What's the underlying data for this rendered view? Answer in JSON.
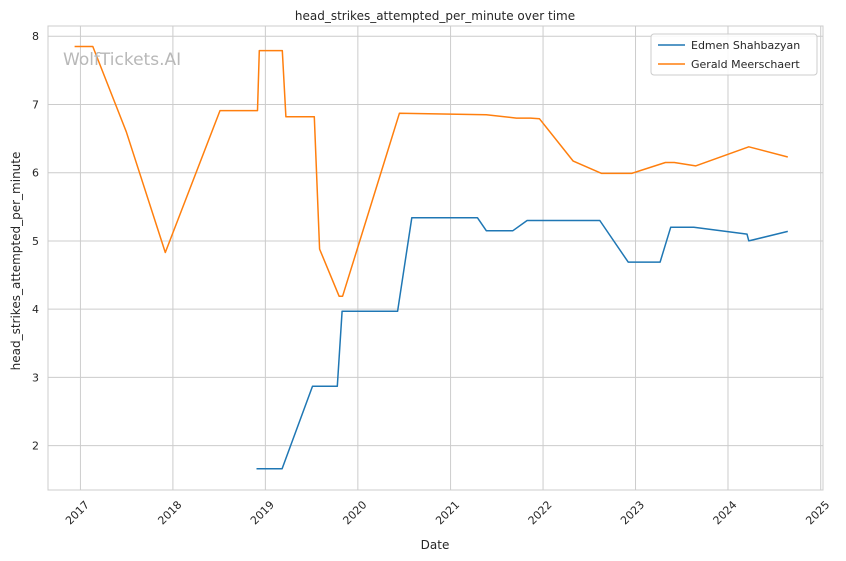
{
  "chart_data": {
    "type": "line",
    "title": "head_strikes_attempted_per_minute over time",
    "xlabel": "Date",
    "ylabel": "head_strikes_attempted_per_minute",
    "watermark": "WolfTickets.AI",
    "xlim": [
      "2016-08-26",
      "2025-01-10"
    ],
    "ylim": [
      1.35,
      8.15
    ],
    "x_ticks": [
      "2017-01-01",
      "2018-01-01",
      "2019-01-01",
      "2020-01-01",
      "2021-01-01",
      "2022-01-01",
      "2023-01-01",
      "2024-01-01",
      "2025-01-01"
    ],
    "x_tick_labels": [
      "2017",
      "2018",
      "2019",
      "2020",
      "2021",
      "2022",
      "2023",
      "2024",
      "2025"
    ],
    "y_ticks": [
      2,
      3,
      4,
      5,
      6,
      7,
      8
    ],
    "y_tick_labels": [
      "2",
      "3",
      "4",
      "5",
      "6",
      "7",
      "8"
    ],
    "grid": true,
    "legend_position": "top-right",
    "colors": {
      "Edmen Shahbazyan": "#1f77b4",
      "Gerald Meerschaert": "#ff7f0e",
      "grid": "#cccccc",
      "axes": "#cccccc"
    },
    "series": [
      {
        "name": "Edmen Shahbazyan",
        "points": [
          [
            "2018-11-27",
            1.66
          ],
          [
            "2019-03-08",
            1.66
          ],
          [
            "2019-07-06",
            2.87
          ],
          [
            "2019-10-12",
            2.87
          ],
          [
            "2019-10-31",
            3.97
          ],
          [
            "2020-06-06",
            3.97
          ],
          [
            "2020-08-01",
            5.34
          ],
          [
            "2021-04-17",
            5.34
          ],
          [
            "2021-05-22",
            5.15
          ],
          [
            "2021-09-04",
            5.15
          ],
          [
            "2021-10-30",
            5.3
          ],
          [
            "2022-08-13",
            5.3
          ],
          [
            "2022-12-03",
            4.69
          ],
          [
            "2023-04-08",
            4.69
          ],
          [
            "2023-05-20",
            5.2
          ],
          [
            "2023-08-19",
            5.2
          ],
          [
            "2024-03-16",
            5.1
          ],
          [
            "2024-03-23",
            5.0
          ],
          [
            "2024-08-24",
            5.14
          ]
        ]
      },
      {
        "name": "Gerald Meerschaert",
        "points": [
          [
            "2016-12-09",
            7.85
          ],
          [
            "2017-02-19",
            7.85
          ],
          [
            "2017-07-01",
            6.6
          ],
          [
            "2017-12-02",
            4.83
          ],
          [
            "2018-07-06",
            6.91
          ],
          [
            "2018-12-01",
            6.91
          ],
          [
            "2018-12-08",
            7.79
          ],
          [
            "2019-03-09",
            7.79
          ],
          [
            "2019-03-23",
            6.82
          ],
          [
            "2019-07-13",
            6.82
          ],
          [
            "2019-08-03",
            4.88
          ],
          [
            "2019-10-19",
            4.19
          ],
          [
            "2019-11-02",
            4.19
          ],
          [
            "2020-06-13",
            6.87
          ],
          [
            "2021-05-22",
            6.85
          ],
          [
            "2021-09-18",
            6.8
          ],
          [
            "2021-11-13",
            6.8
          ],
          [
            "2021-12-18",
            6.79
          ],
          [
            "2022-04-30",
            6.17
          ],
          [
            "2022-08-20",
            5.99
          ],
          [
            "2022-12-17",
            5.99
          ],
          [
            "2023-04-29",
            6.15
          ],
          [
            "2023-06-03",
            6.15
          ],
          [
            "2023-08-26",
            6.1
          ],
          [
            "2024-03-23",
            6.38
          ],
          [
            "2024-08-24",
            6.23
          ]
        ]
      }
    ]
  }
}
